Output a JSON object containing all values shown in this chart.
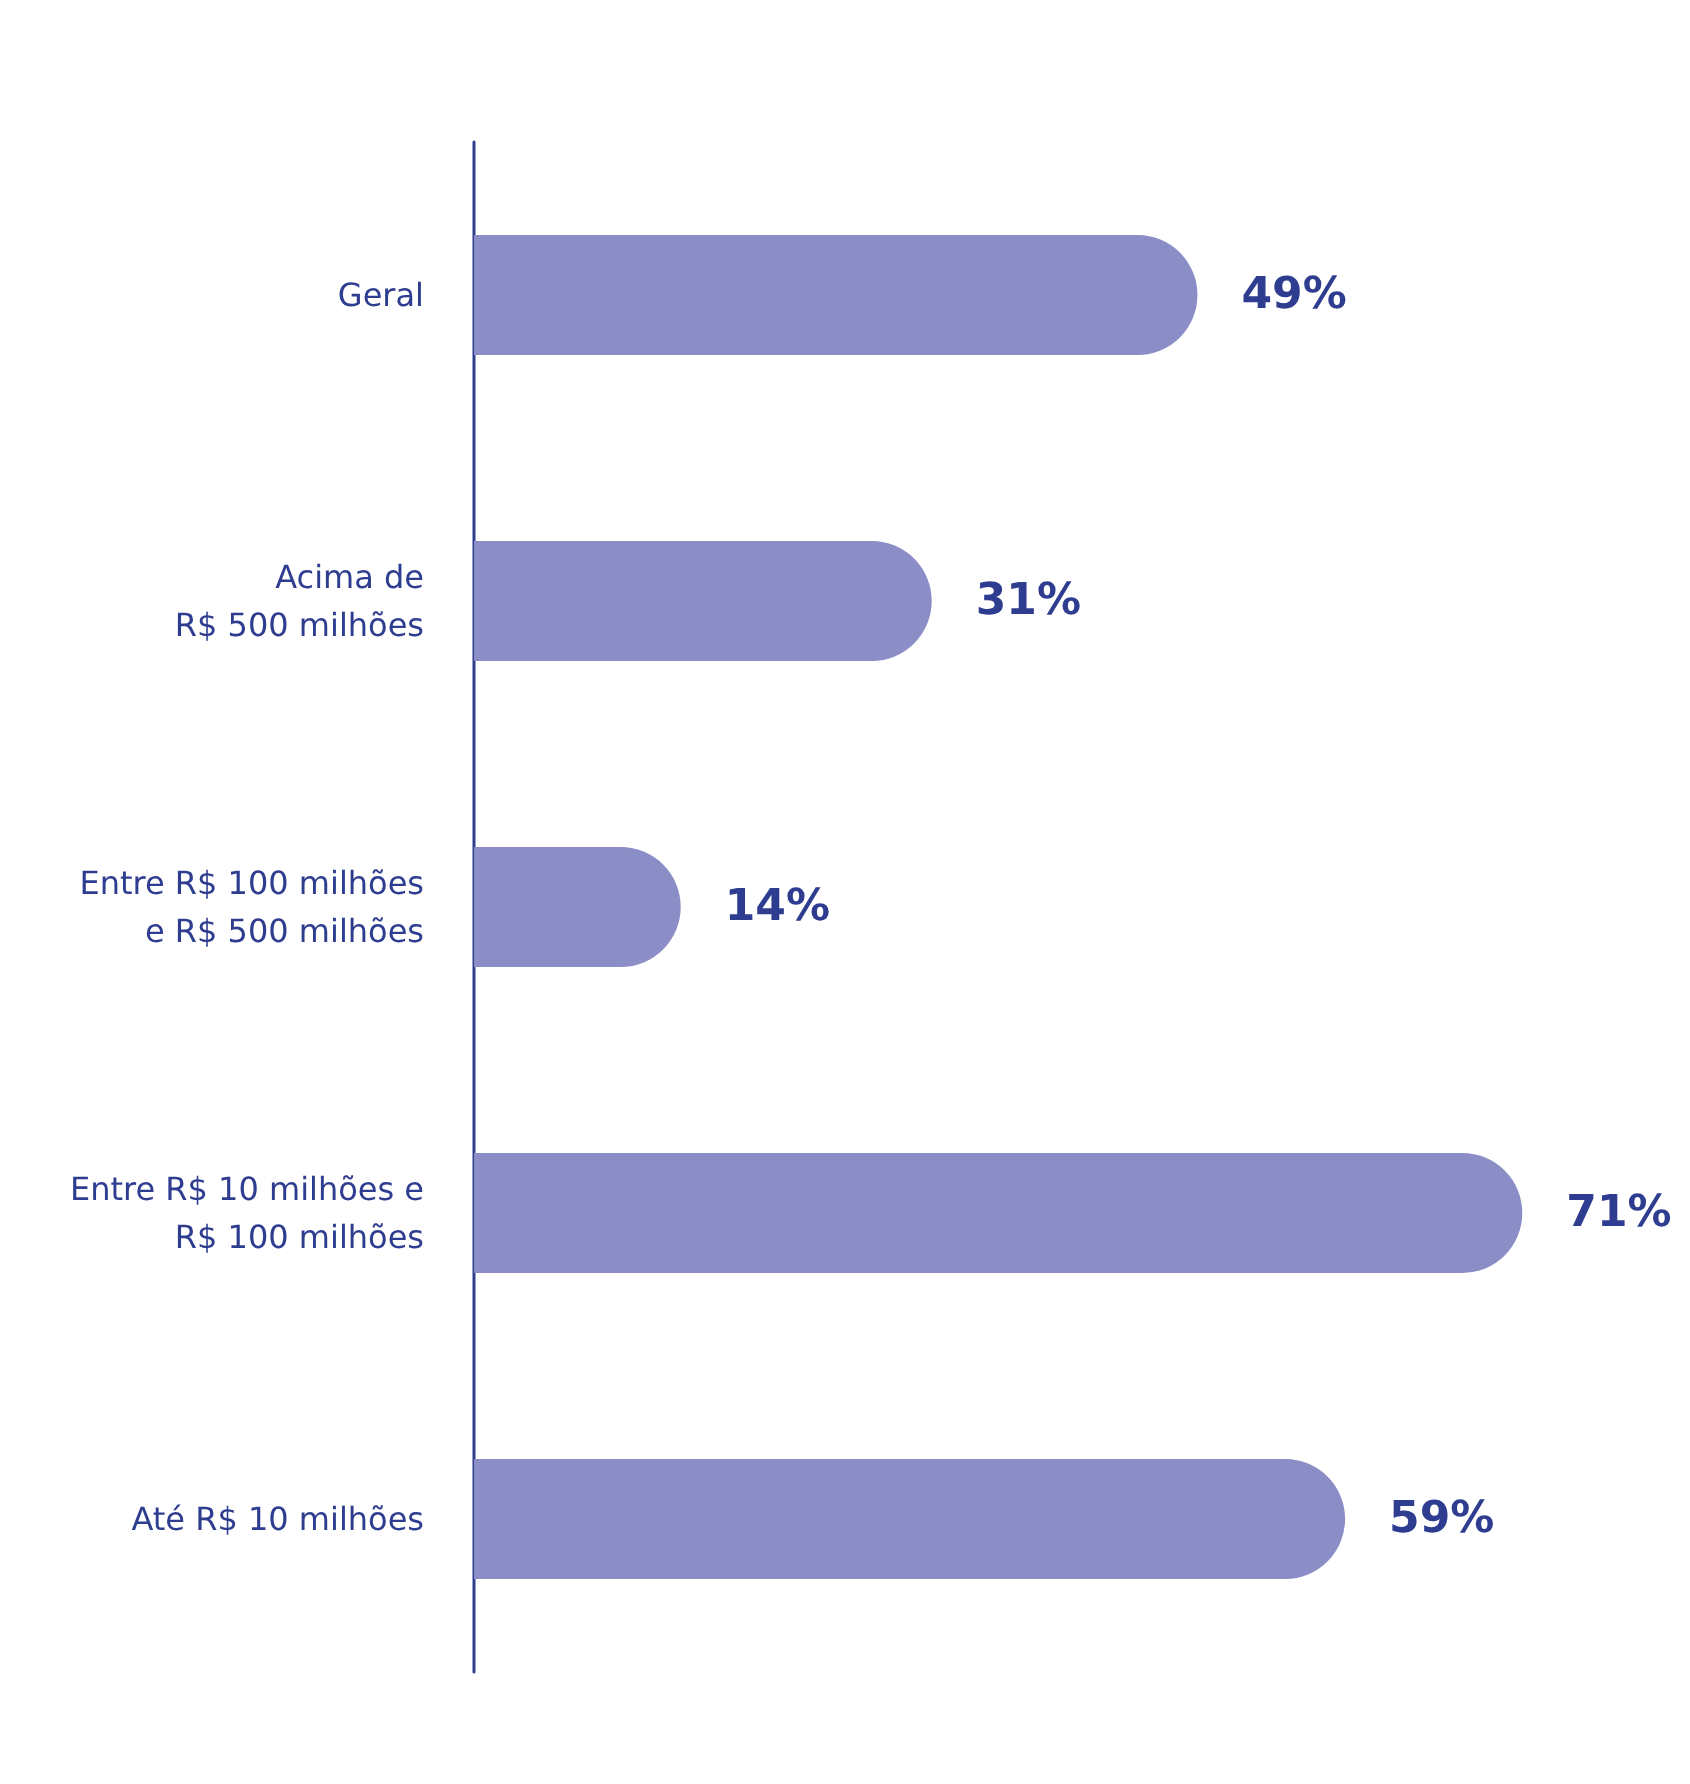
{
  "chart_data": {
    "type": "bar",
    "orientation": "horizontal",
    "tick_labels": "y",
    "categories": [
      "Geral",
      "Acima de\nR$ 500 milhões",
      "Entre R$ 100 milhões\ne R$ 500 milhões",
      "Entre R$ 10 milhões e\nR$ 100 milhões",
      "Até R$ 10 milhões"
    ],
    "values": [
      49,
      31,
      14,
      71,
      59
    ],
    "value_labels": [
      "49%",
      "31%",
      "14%",
      "71%",
      "59%"
    ],
    "color": "#8b8ec6"
  }
}
